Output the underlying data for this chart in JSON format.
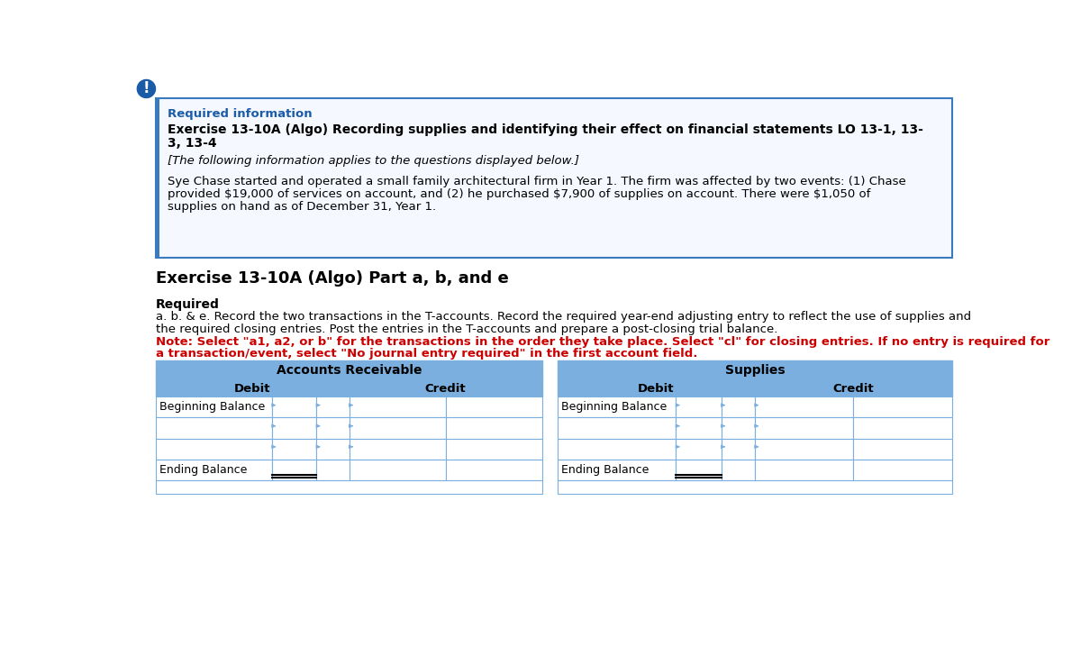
{
  "page_bg": "#ffffff",
  "info_box_border": "#3a7abf",
  "required_info_color": "#1a5ca8",
  "exercise_title_line1": "Exercise 13-10A (Algo) Recording supplies and identifying their effect on financial statements LO 13-1, 13-",
  "exercise_title_line2": "3, 13-4",
  "italic_line": "[The following information applies to the questions displayed below.]",
  "body_line1": "Sye Chase started and operated a small family architectural firm in Year 1. The firm was affected by two events: (1) Chase",
  "body_line2": "provided $19,000 of services on account, and (2) he purchased $7,900 of supplies on account. There were $1,050 of",
  "body_line3": "supplies on hand as of December 31, Year 1.",
  "section_title": "Exercise 13-10A (Algo) Part a, b, and e",
  "required_label": "Required",
  "req_body_line1": "a. b. & e. Record the two transactions in the T-accounts. Record the required year-end adjusting entry to reflect the use of supplies and",
  "req_body_line2": "the required closing entries. Post the entries in the T-accounts and prepare a post-closing trial balance.",
  "note_line1": "Note: Select \"a1, a2, or b\" for the transactions in the order they take place. Select \"cl\" for closing entries. If no entry is required for",
  "note_line2": "a transaction/event, select \"No journal entry required\" in the first account field.",
  "note_color": "#cc0000",
  "table_header_bg": "#7aafe0",
  "table_border_light": "#7aafe0",
  "table_border_dark": "#000000",
  "left_table_title": "Accounts Receivable",
  "right_table_title": "Supplies",
  "warning_icon_bg": "#1a5ca8"
}
